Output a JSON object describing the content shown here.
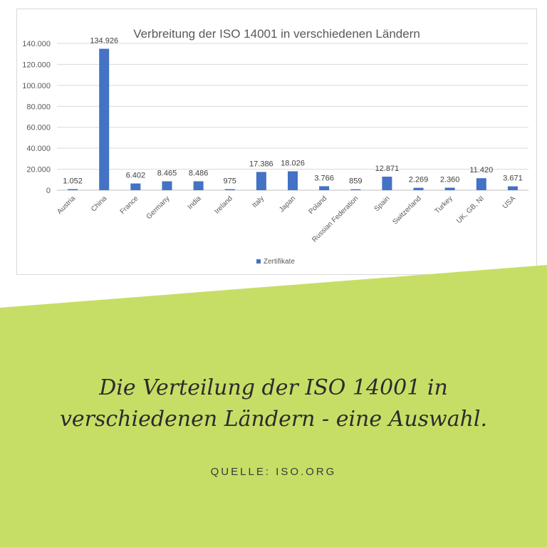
{
  "chart_data": {
    "type": "bar",
    "title": "Verbreitung der ISO 14001 in verschiedenen Ländern",
    "categories": [
      "Austria",
      "China",
      "France",
      "Germany",
      "India",
      "Ireland",
      "Italy",
      "Japan",
      "Poland",
      "Russian Federation",
      "Spain",
      "Switzerland",
      "Turkey",
      "UK, GB, NI",
      "USA"
    ],
    "series": [
      {
        "name": "Zertifikate",
        "values": [
          1052,
          134926,
          6402,
          8465,
          8486,
          975,
          17386,
          18026,
          3766,
          859,
          12871,
          2269,
          2360,
          11420,
          3671
        ],
        "labels": [
          "1.052",
          "134.926",
          "6.402",
          "8.465",
          "8.486",
          "975",
          "17.386",
          "18.026",
          "3.766",
          "859",
          "12.871",
          "2.269",
          "2.360",
          "11.420",
          "3.671"
        ]
      }
    ],
    "ylim": [
      0,
      140000
    ],
    "yticks": [
      0,
      20000,
      40000,
      60000,
      80000,
      100000,
      120000,
      140000
    ],
    "ytick_labels": [
      "0",
      "20.000",
      "40.000",
      "60.000",
      "80.000",
      "100.000",
      "120.000",
      "140.000"
    ],
    "grid": true,
    "legend_position": "bottom",
    "bar_color": "#4472c4"
  },
  "caption": {
    "line1": "Die Verteilung der ISO 14001 in",
    "line2": "verschiedenen Ländern - eine Auswahl."
  },
  "source": "QUELLE: ISO.ORG",
  "colors": {
    "background_green": "#c6de66",
    "text": "#2b2b2b"
  }
}
